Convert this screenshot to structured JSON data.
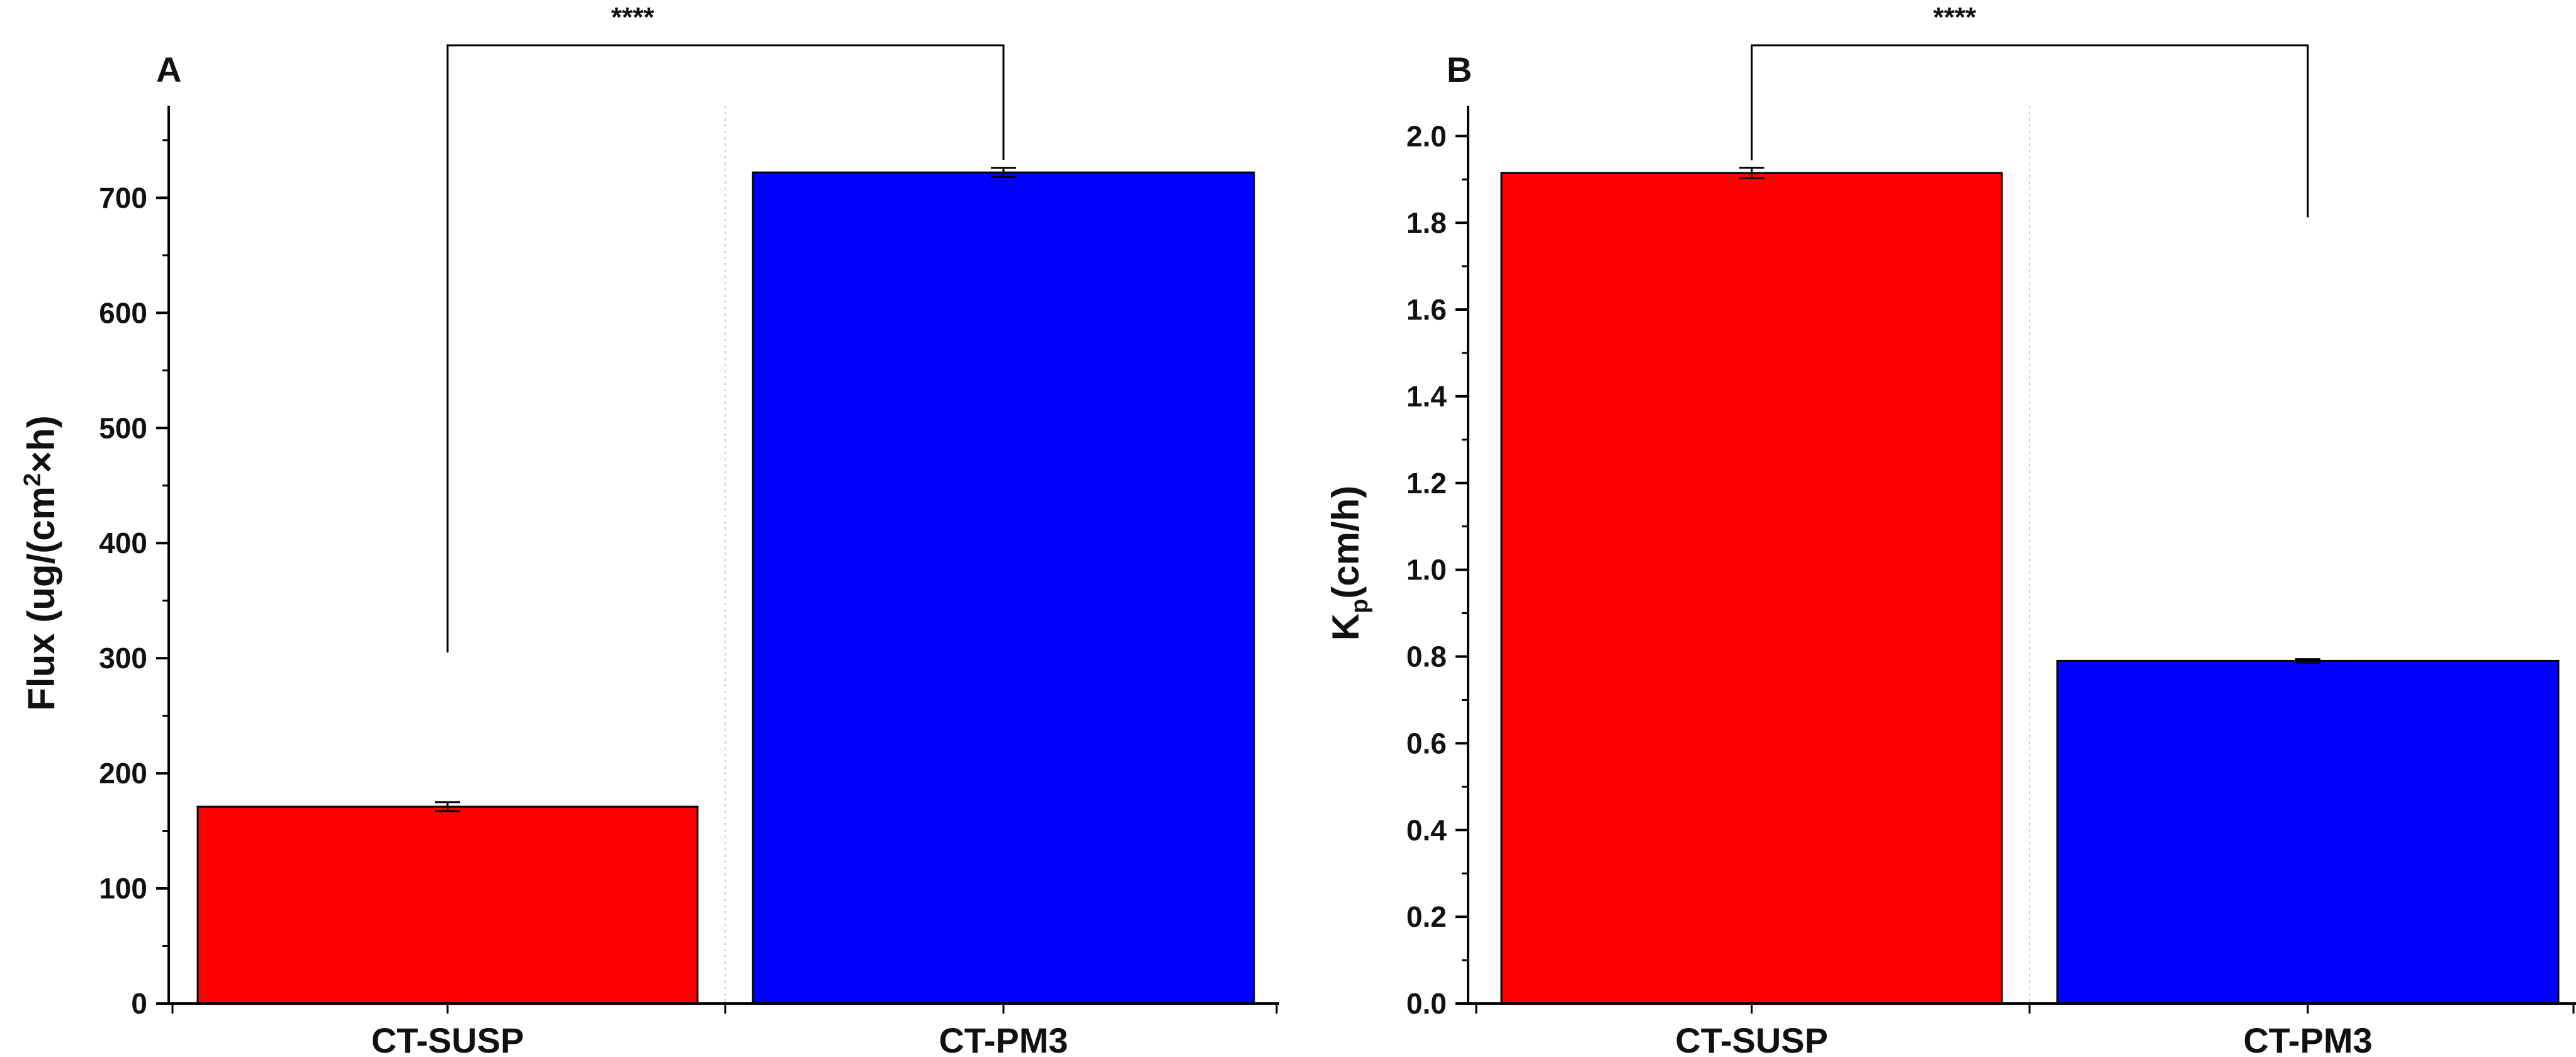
{
  "chart_data": [
    {
      "panel": "A",
      "type": "bar",
      "categories": [
        "CT-SUSP",
        "CT-PM3"
      ],
      "values": [
        171,
        722
      ],
      "errors": [
        4,
        4
      ],
      "colors": [
        "#ff0000",
        "#0000ff"
      ],
      "ylabel_main": "Flux (ug/(cm",
      "ylabel_sup": "2",
      "ylabel_tail": "×h)",
      "ylim": [
        0,
        780
      ],
      "yticks": [
        0,
        100,
        200,
        300,
        400,
        500,
        600,
        700
      ],
      "ytick_labels": [
        "0",
        "100",
        "200",
        "300",
        "400",
        "500",
        "600",
        "700"
      ],
      "minor_step": 50,
      "significance": "****"
    },
    {
      "panel": "B",
      "type": "bar",
      "categories": [
        "CT-SUSP",
        "CT-PM3"
      ],
      "values": [
        1.915,
        0.79
      ],
      "errors": [
        0.012,
        0.004
      ],
      "colors": [
        "#ff0000",
        "#0000ff"
      ],
      "ylabel_main": "K",
      "ylabel_sub": "p",
      "ylabel_tail": "(cm/h)",
      "ylim": [
        0,
        2.07
      ],
      "yticks": [
        0,
        0.2,
        0.4,
        0.6,
        0.8,
        1.0,
        1.2,
        1.4,
        1.6,
        1.8,
        2.0
      ],
      "ytick_labels": [
        "0.0",
        "0.2",
        "0.4",
        "0.6",
        "0.8",
        "1.0",
        "1.2",
        "1.4",
        "1.6",
        "1.8",
        "2.0"
      ],
      "minor_step": 0.1,
      "significance": "****"
    }
  ]
}
